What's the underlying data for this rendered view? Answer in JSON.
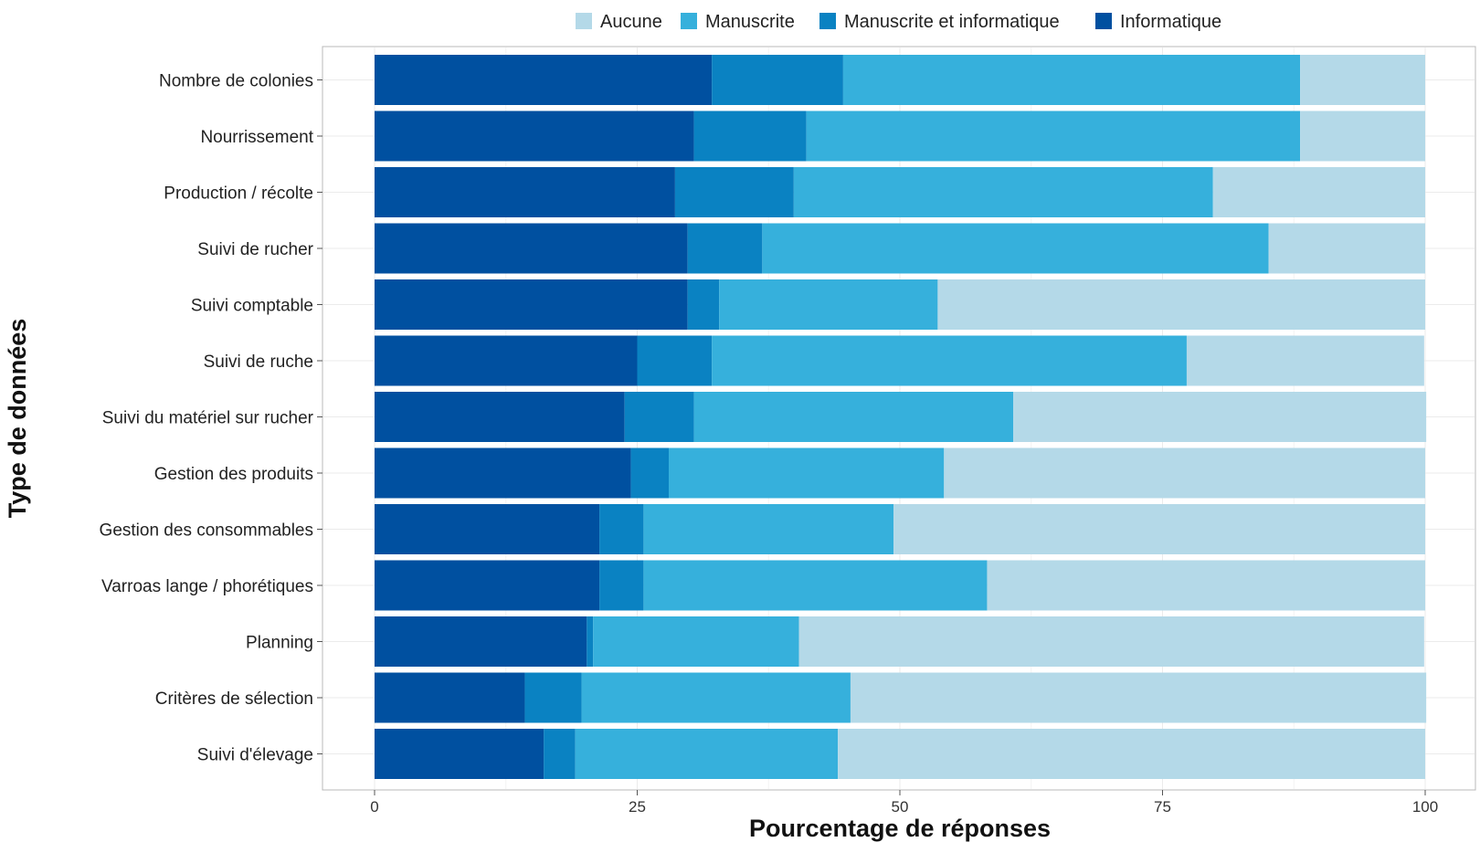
{
  "chart_data": {
    "type": "bar",
    "orientation": "horizontal",
    "stacked": true,
    "xlabel": "Pourcentage de réponses",
    "ylabel": "Type de données",
    "xlim": [
      0,
      100
    ],
    "xticks": [
      0,
      25,
      50,
      75,
      100
    ],
    "grid": true,
    "legend_position": "top",
    "categories": [
      "Nombre de colonies",
      "Nourrissement",
      "Production / récolte",
      "Suivi de rucher",
      "Suivi comptable",
      "Suivi de ruche",
      "Suivi du matériel sur rucher",
      "Gestion des produits",
      "Gestion des consommables",
      "Varroas lange / phorétiques",
      "Planning",
      "Critères de sélection",
      "Suivi d'élevage"
    ],
    "series": [
      {
        "name": "Informatique",
        "color": "#0050a0",
        "values": [
          32.1,
          30.4,
          28.6,
          29.8,
          29.8,
          25.0,
          23.8,
          24.4,
          21.4,
          21.4,
          20.2,
          14.3,
          16.1
        ]
      },
      {
        "name": "Manuscrite et informatique",
        "color": "#0a82c2",
        "values": [
          12.5,
          10.7,
          11.3,
          7.1,
          3.0,
          7.1,
          6.6,
          3.6,
          4.2,
          4.2,
          0.6,
          5.4,
          3.0
        ]
      },
      {
        "name": "Manuscrite",
        "color": "#36b0dc",
        "values": [
          43.5,
          47.0,
          39.9,
          48.2,
          20.8,
          45.2,
          30.4,
          26.2,
          23.8,
          32.7,
          19.6,
          25.6,
          25.0
        ]
      },
      {
        "name": "Aucune",
        "color": "#b4d9e8",
        "values": [
          11.9,
          11.9,
          20.2,
          14.9,
          46.4,
          22.6,
          39.3,
          45.8,
          50.6,
          41.7,
          59.5,
          54.8,
          55.9
        ]
      }
    ],
    "legend": [
      "Aucune",
      "Manuscrite",
      "Manuscrite et informatique",
      "Informatique"
    ]
  }
}
